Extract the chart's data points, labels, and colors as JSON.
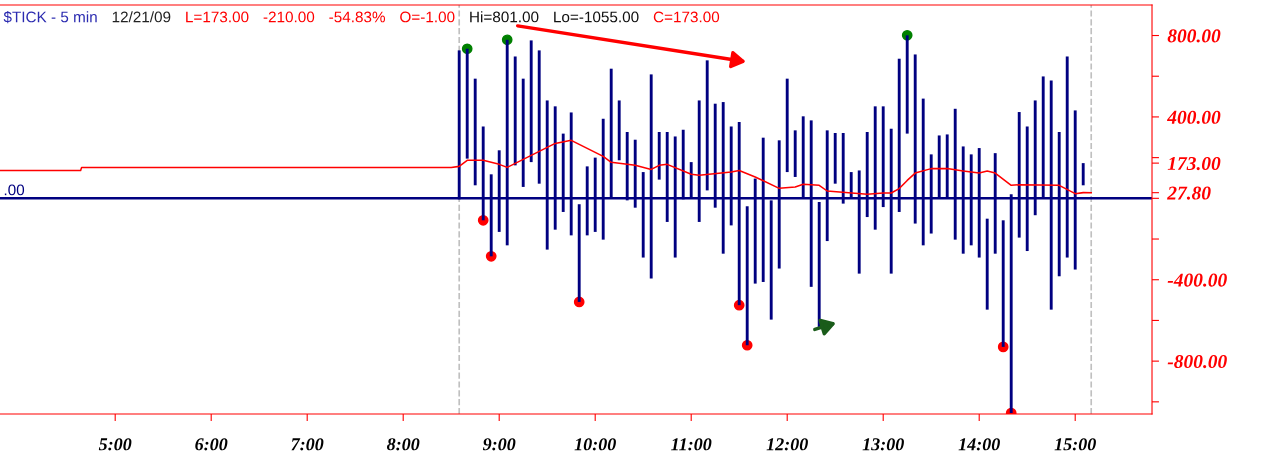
{
  "chart_data": {
    "type": "bar",
    "title": "$TICK - 5 min",
    "subtitle": "12/21/09",
    "annotations": [
      "L=173.00",
      "-210.00",
      "-54.83%",
      "O=-1.00",
      "Hi=801.00",
      "Lo=-1055.00",
      "C=173.00"
    ],
    "xlim": [
      3.8,
      15.8
    ],
    "xticks": [
      {
        "value": 5,
        "label": "5:00"
      },
      {
        "value": 6,
        "label": "6:00"
      },
      {
        "value": 7,
        "label": "7:00"
      },
      {
        "value": 8,
        "label": "8:00"
      },
      {
        "value": 9,
        "label": "9:00"
      },
      {
        "value": 10,
        "label": "10:00"
      },
      {
        "value": 11,
        "label": "11:00"
      },
      {
        "value": 12,
        "label": "12:00"
      },
      {
        "value": 13,
        "label": "13:00"
      },
      {
        "value": 14,
        "label": "14:00"
      },
      {
        "value": 15,
        "label": "15:00"
      }
    ],
    "ylim": [
      -1060,
      950
    ],
    "yticks": [
      {
        "value": 800,
        "label": "800.00"
      },
      {
        "value": 600,
        "label": null
      },
      {
        "value": 400,
        "label": "400.00"
      },
      {
        "value": 200,
        "label": null
      },
      {
        "value": 173,
        "label": "173.00"
      },
      {
        "value": 27.8,
        "label": "27.80"
      },
      {
        "value": 0,
        "label": null
      },
      {
        "value": -200,
        "label": null
      },
      {
        "value": -400,
        "label": "-400.00"
      },
      {
        "value": -600,
        "label": null
      },
      {
        "value": -800,
        "label": "-800.00"
      },
      {
        "value": -1000,
        "label": null
      }
    ],
    "grid": false,
    "legend": false,
    "ref_lines": [
      {
        "axis": "y",
        "value": 0,
        "label": ".00",
        "color": "#000080"
      },
      {
        "axis": "x",
        "value": 8.5833,
        "color": "#c0c0c0",
        "line_style": "dashed"
      },
      {
        "axis": "x",
        "value": 15.1667,
        "color": "#c0c0c0",
        "line_style": "dashed"
      }
    ],
    "series": [
      {
        "color": "#000080",
        "x": [
          8.5833,
          8.6667,
          8.75,
          8.8333,
          8.9167,
          9.0,
          9.0833,
          9.1667,
          9.25,
          9.3333,
          9.4167,
          9.5,
          9.5833,
          9.6667,
          9.75,
          9.8333,
          9.9167,
          10.0,
          10.0833,
          10.1667,
          10.25,
          10.3333,
          10.4167,
          10.5,
          10.5833,
          10.6667,
          10.75,
          10.8333,
          10.9167,
          11.0,
          11.0833,
          11.1667,
          11.25,
          11.3333,
          11.4167,
          11.5,
          11.5833,
          11.6667,
          11.75,
          11.8333,
          11.9167,
          12.0,
          12.0833,
          12.1667,
          12.25,
          12.3333,
          12.4167,
          12.5,
          12.5833,
          12.6667,
          12.75,
          12.8333,
          12.9167,
          13.0,
          13.0833,
          13.1667,
          13.25,
          13.3333,
          13.4167,
          13.5,
          13.5833,
          13.6667,
          13.75,
          13.8333,
          13.9167,
          14.0,
          14.0833,
          14.1667,
          14.25,
          14.3333,
          14.4167,
          14.5,
          14.5833,
          14.6667,
          14.75,
          14.8333,
          14.9167,
          15.0,
          15.0833
        ],
        "base": [
          -5,
          195,
          64,
          -108,
          -285,
          -165,
          -231,
          162,
          56,
          178,
          72,
          -252,
          -154,
          -67,
          -182,
          -509,
          -182,
          -165,
          -203,
          0,
          187,
          -10,
          -46,
          -291,
          -394,
          92,
          -116,
          -291,
          -5,
          6,
          -116,
          39,
          -46,
          -272,
          -133,
          -525,
          -722,
          -419,
          -411,
          -596,
          -345,
          129,
          105,
          6,
          -435,
          -632,
          -210,
          72,
          -26,
          6,
          -370,
          -92,
          -154,
          -43,
          -370,
          -67,
          318,
          -124,
          -231,
          -173,
          6,
          6,
          -203,
          -272,
          -231,
          -291,
          -547,
          -272,
          -730,
          -1055,
          -193,
          -259,
          -83,
          6,
          -547,
          -383,
          -291,
          -350,
          64
        ],
        "values": [
          732,
          540,
          524,
          461,
          403,
          401,
          1010,
          535,
          532,
          598,
          655,
          733,
          606,
          385,
          604,
          480,
          339,
          365,
          594,
          637,
          294,
          336,
          334,
          420,
          1003,
          234,
          442,
          595,
          342,
          172,
          597,
          639,
          511,
          745,
          486,
          900,
          683,
          516,
          709,
          586,
          630,
          459,
          229,
          397,
          818,
          614,
          544,
          249,
          347,
          123,
          507,
          418,
          606,
          495,
          712,
          753,
          483,
          831,
          721,
          389,
          303,
          308,
          643,
          527,
          447,
          538,
          447,
          494,
          622,
          1075,
          617,
          612,
          564,
          593,
          1126,
          709,
          988,
          782,
          109
        ]
      },
      {
        "type": "line",
        "color": "#ff0000",
        "marker": "none",
        "line_style": "solid",
        "x": [
          3.8,
          4.64,
          4.65,
          8.5,
          8.5833,
          8.6667,
          8.8333,
          9.0,
          9.0833,
          9.3333,
          9.5833,
          9.75,
          10.0833,
          10.1667,
          10.4167,
          10.5833,
          10.6667,
          10.75,
          11.0,
          11.0833,
          11.4167,
          11.5,
          11.6667,
          11.9167,
          12.0833,
          12.1667,
          12.3333,
          12.4167,
          12.8333,
          13.0,
          13.0833,
          13.1667,
          13.25,
          13.3333,
          13.5,
          13.6667,
          13.8333,
          14.0,
          14.0833,
          14.1667,
          14.3333,
          14.4167,
          14.8333,
          15.0,
          15.0833,
          15.1667
        ],
        "values": [
          137,
          137,
          152,
          152,
          157,
          187,
          187,
          167,
          152,
          211,
          270,
          285,
          206,
          177,
          162,
          142,
          162,
          167,
          118,
          113,
          129,
          137,
          105,
          49,
          56,
          69,
          64,
          36,
          20,
          26,
          26,
          48,
          88,
          124,
          146,
          146,
          134,
          124,
          134,
          124,
          64,
          67,
          64,
          23,
          28,
          27.8
        ]
      },
      {
        "type": "scatter",
        "color": "#ff0000",
        "marker": "circle",
        "x": [
          8.8333,
          8.9167,
          9.8333,
          11.5,
          11.5833,
          14.25,
          14.3333
        ],
        "values": [
          -108,
          -285,
          -509,
          -525,
          -722,
          -730,
          -1055
        ]
      },
      {
        "type": "scatter",
        "color": "#008000",
        "marker": "circle",
        "x": [
          8.6667,
          9.0833,
          13.25
        ],
        "values": [
          735,
          779,
          801
        ]
      }
    ]
  }
}
